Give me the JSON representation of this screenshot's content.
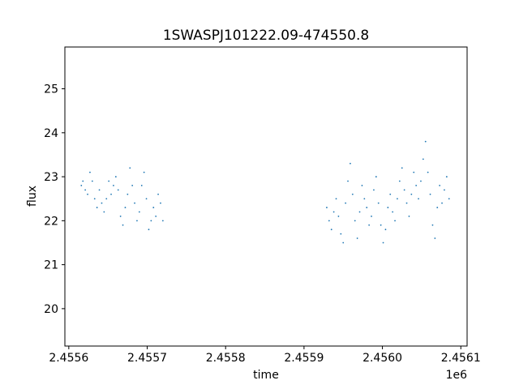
{
  "chart_data": {
    "type": "scatter",
    "title": "1SWASPJ101222.09-474550.8",
    "xlabel": "time",
    "ylabel": "flux",
    "x_offset_label": "1e6",
    "xlim": [
      2455595,
      2456108
    ],
    "ylim": [
      19.15,
      25.95
    ],
    "xticks": [
      2455600,
      2455700,
      2455800,
      2455900,
      2456000,
      2456100
    ],
    "xtick_labels": [
      "2.4556",
      "2.4557",
      "2.4558",
      "2.4559",
      "2.4560",
      "2.4561"
    ],
    "yticks": [
      20,
      21,
      22,
      23,
      24,
      25
    ],
    "ytick_labels": [
      "20",
      "21",
      "22",
      "23",
      "24",
      "25"
    ],
    "grid": false,
    "series": [
      {
        "color": "#1f77b4",
        "marker": "point",
        "x": [
          2455616,
          2455618,
          2455621,
          2455624,
          2455627,
          2455630,
          2455633,
          2455636,
          2455639,
          2455642,
          2455645,
          2455648,
          2455651,
          2455654,
          2455657,
          2455660,
          2455663,
          2455666,
          2455669,
          2455672,
          2455675,
          2455678,
          2455681,
          2455684,
          2455687,
          2455690,
          2455693,
          2455696,
          2455699,
          2455702,
          2455705,
          2455708,
          2455711,
          2455714,
          2455717,
          2455720,
          2455929,
          2455932,
          2455935,
          2455938,
          2455941,
          2455944,
          2455947,
          2455950,
          2455953,
          2455956,
          2455959,
          2455962,
          2455965,
          2455968,
          2455971,
          2455974,
          2455977,
          2455980,
          2455983,
          2455986,
          2455989,
          2455992,
          2455995,
          2455998,
          2456001,
          2456004,
          2456007,
          2456010,
          2456013,
          2456016,
          2456019,
          2456022,
          2456025,
          2456028,
          2456031,
          2456034,
          2456037,
          2456040,
          2456043,
          2456046,
          2456049,
          2456052,
          2456055,
          2456058,
          2456061,
          2456064,
          2456067,
          2456070,
          2456073,
          2456076,
          2456079,
          2456082,
          2456085
        ],
        "y": [
          22.8,
          22.9,
          22.7,
          22.6,
          23.1,
          22.9,
          22.5,
          22.3,
          22.7,
          22.4,
          22.2,
          22.5,
          22.9,
          22.6,
          22.8,
          23.0,
          22.7,
          22.1,
          21.9,
          22.3,
          22.6,
          23.2,
          22.8,
          22.4,
          22.0,
          22.2,
          22.8,
          23.1,
          22.5,
          21.8,
          22.0,
          22.3,
          22.1,
          22.6,
          22.4,
          22.0,
          22.3,
          22.0,
          21.8,
          22.2,
          22.5,
          22.1,
          21.7,
          21.5,
          22.4,
          22.9,
          23.3,
          22.6,
          22.0,
          21.6,
          22.2,
          22.8,
          22.5,
          22.3,
          21.9,
          22.1,
          22.7,
          23.0,
          22.4,
          21.9,
          21.5,
          21.8,
          22.3,
          22.6,
          22.2,
          22.0,
          22.5,
          22.9,
          23.2,
          22.7,
          22.4,
          22.1,
          22.6,
          23.1,
          22.8,
          22.5,
          22.9,
          23.4,
          23.8,
          23.1,
          22.6,
          21.9,
          21.6,
          22.3,
          22.8,
          22.4,
          22.7,
          23.0,
          22.5
        ]
      }
    ]
  }
}
